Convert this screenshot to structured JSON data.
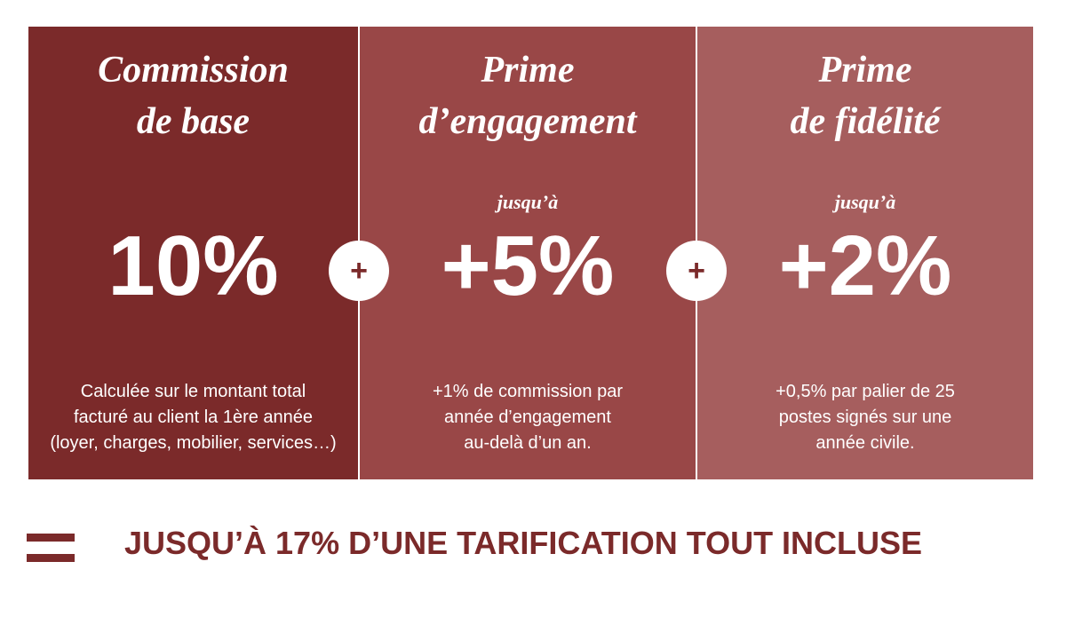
{
  "panels": [
    {
      "title": [
        "Commission",
        "de base"
      ],
      "value": "10%",
      "description": [
        "Calculée sur le montant total",
        "facturé au client la 1ère année",
        "(loyer, charges, mobilier, services…)"
      ]
    },
    {
      "title": [
        "Prime",
        "d’engagement"
      ],
      "prefix": "jusqu’à",
      "value": "+5%",
      "description": [
        "+1% de commission par",
        "année d’engagement",
        "au-delà d’un an."
      ]
    },
    {
      "title": [
        "Prime",
        "de fidélité"
      ],
      "prefix": "jusqu’à",
      "value": "+2%",
      "description": [
        "+0,5% par palier de 25",
        "postes signés sur une",
        "année civile."
      ]
    }
  ],
  "operators": [
    "+",
    "+"
  ],
  "footer": "JUSQU’À 17% D’UNE TARIFICATION TOUT INCLUSE"
}
